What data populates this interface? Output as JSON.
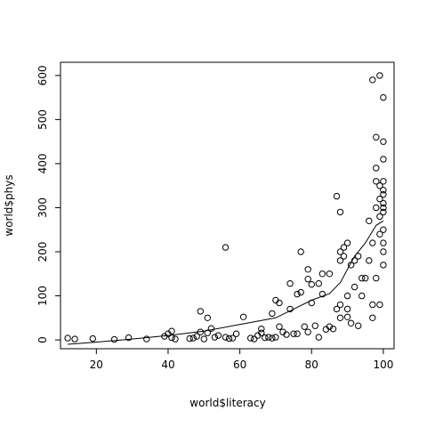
{
  "chart_data": {
    "type": "scatter",
    "title": "",
    "xlabel": "world$literacy",
    "ylabel": "world$phys",
    "xlim": [
      10,
      103
    ],
    "ylim": [
      -20,
      630
    ],
    "xticks": [
      20,
      40,
      60,
      80,
      100
    ],
    "yticks": [
      0,
      100,
      200,
      300,
      400,
      500,
      600
    ],
    "grid": false,
    "points": [
      [
        12,
        4
      ],
      [
        14,
        2
      ],
      [
        19,
        3
      ],
      [
        25,
        1
      ],
      [
        29,
        5
      ],
      [
        34,
        2
      ],
      [
        39,
        8
      ],
      [
        40,
        14
      ],
      [
        41,
        20
      ],
      [
        41,
        5
      ],
      [
        42,
        2
      ],
      [
        46,
        3
      ],
      [
        47,
        4
      ],
      [
        48,
        8
      ],
      [
        49,
        18
      ],
      [
        49,
        65
      ],
      [
        50,
        2
      ],
      [
        51,
        50
      ],
      [
        51,
        16
      ],
      [
        52,
        26
      ],
      [
        53,
        6
      ],
      [
        54,
        10
      ],
      [
        56,
        210
      ],
      [
        56,
        6
      ],
      [
        57,
        3
      ],
      [
        58,
        4
      ],
      [
        59,
        14
      ],
      [
        61,
        52
      ],
      [
        63,
        4
      ],
      [
        64,
        2
      ],
      [
        65,
        10
      ],
      [
        66,
        16
      ],
      [
        66,
        25
      ],
      [
        67,
        5
      ],
      [
        68,
        6
      ],
      [
        69,
        4
      ],
      [
        69,
        60
      ],
      [
        70,
        6
      ],
      [
        70,
        90
      ],
      [
        71,
        30
      ],
      [
        71,
        84
      ],
      [
        72,
        18
      ],
      [
        73,
        12
      ],
      [
        74,
        70
      ],
      [
        74,
        128
      ],
      [
        75,
        14
      ],
      [
        76,
        14
      ],
      [
        76,
        104
      ],
      [
        77,
        108
      ],
      [
        77,
        200
      ],
      [
        78,
        30
      ],
      [
        79,
        160
      ],
      [
        79,
        18
      ],
      [
        79,
        138
      ],
      [
        80,
        84
      ],
      [
        80,
        126
      ],
      [
        81,
        32
      ],
      [
        82,
        6
      ],
      [
        82,
        128
      ],
      [
        83,
        104
      ],
      [
        83,
        150
      ],
      [
        84,
        24
      ],
      [
        85,
        30
      ],
      [
        85,
        150
      ],
      [
        86,
        25
      ],
      [
        87,
        70
      ],
      [
        87,
        326
      ],
      [
        88,
        50
      ],
      [
        88,
        80
      ],
      [
        88,
        290
      ],
      [
        88,
        180
      ],
      [
        88,
        200
      ],
      [
        89,
        210
      ],
      [
        89,
        190
      ],
      [
        90,
        220
      ],
      [
        90,
        70
      ],
      [
        90,
        100
      ],
      [
        90,
        52
      ],
      [
        91,
        38
      ],
      [
        91,
        170
      ],
      [
        92,
        180
      ],
      [
        92,
        120
      ],
      [
        93,
        32
      ],
      [
        93,
        190
      ],
      [
        94,
        100
      ],
      [
        94,
        140
      ],
      [
        95,
        140
      ],
      [
        96,
        180
      ],
      [
        97,
        50
      ],
      [
        97,
        80
      ],
      [
        98,
        300
      ],
      [
        98,
        390
      ],
      [
        98,
        460
      ],
      [
        99,
        600
      ],
      [
        99,
        350
      ],
      [
        99,
        240
      ],
      [
        100,
        330
      ],
      [
        100,
        300
      ],
      [
        100,
        410
      ],
      [
        100,
        450
      ],
      [
        100,
        220
      ],
      [
        100,
        170
      ],
      [
        100,
        550
      ],
      [
        97,
        590
      ],
      [
        98,
        360
      ],
      [
        99,
        320
      ],
      [
        99,
        280
      ],
      [
        100,
        360
      ],
      [
        100,
        340
      ],
      [
        100,
        310
      ],
      [
        100,
        290
      ],
      [
        100,
        250
      ],
      [
        100,
        200
      ],
      [
        99,
        80
      ],
      [
        98,
        140
      ],
      [
        96,
        270
      ],
      [
        97,
        220
      ]
    ],
    "smooth_line": [
      [
        12,
        -10
      ],
      [
        20,
        -5
      ],
      [
        30,
        2
      ],
      [
        40,
        10
      ],
      [
        50,
        20
      ],
      [
        60,
        35
      ],
      [
        70,
        50
      ],
      [
        75,
        70
      ],
      [
        80,
        90
      ],
      [
        85,
        105
      ],
      [
        88,
        130
      ],
      [
        90,
        160
      ],
      [
        92,
        190
      ],
      [
        95,
        220
      ],
      [
        98,
        260
      ],
      [
        100,
        270
      ]
    ]
  }
}
